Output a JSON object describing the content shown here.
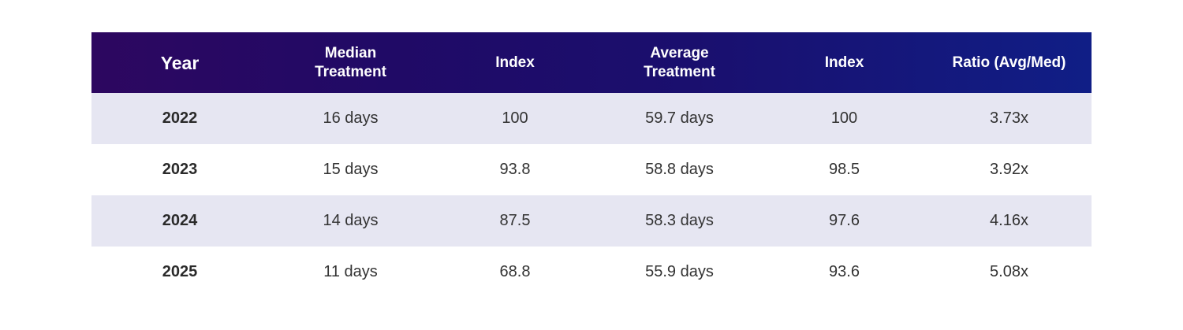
{
  "chart_data": {
    "type": "table",
    "columns": [
      {
        "label_lines": [
          "Year"
        ]
      },
      {
        "label_lines": [
          "Median",
          "Treatment"
        ]
      },
      {
        "label_lines": [
          "Index"
        ]
      },
      {
        "label_lines": [
          "Average",
          "Treatment"
        ]
      },
      {
        "label_lines": [
          "Index"
        ]
      },
      {
        "label_lines": [
          "Ratio (Avg/Med)"
        ]
      }
    ],
    "rows": [
      [
        "2022",
        "16 days",
        "100",
        "59.7 days",
        "100",
        "3.73x"
      ],
      [
        "2023",
        "15 days",
        "93.8",
        "58.8 days",
        "98.5",
        "3.92x"
      ],
      [
        "2024",
        "14 days",
        "87.5",
        "58.3 days",
        "97.6",
        "4.16x"
      ],
      [
        "2025",
        "11 days",
        "68.8",
        "55.9 days",
        "93.6",
        "5.08x"
      ]
    ]
  },
  "colors": {
    "header_gradient_start": "#2d0760",
    "header_gradient_end": "#101e86",
    "header_text": "#ffffff",
    "row_shade": "#e6e6f2",
    "row_plain": "#ffffff",
    "body_text": "#333333"
  }
}
